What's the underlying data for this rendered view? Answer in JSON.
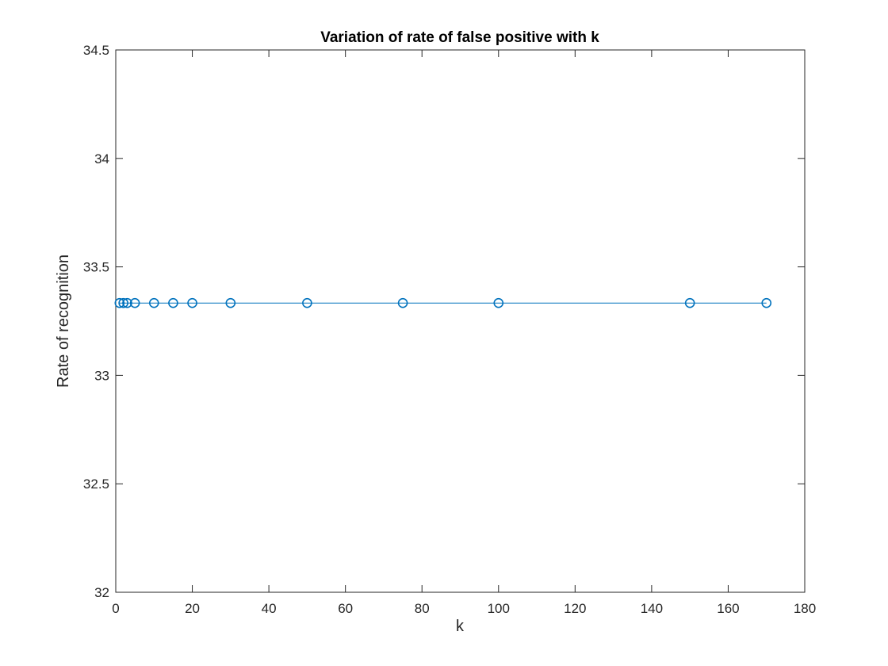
{
  "chart_data": {
    "type": "line",
    "title": "Variation of rate of false positive with k",
    "xlabel": "k",
    "ylabel": "Rate of recognition",
    "xlim": [
      0,
      180
    ],
    "ylim": [
      32,
      34.5
    ],
    "xticks": [
      0,
      20,
      40,
      60,
      80,
      100,
      120,
      140,
      160,
      180
    ],
    "yticks": [
      32,
      32.5,
      33,
      33.5,
      34,
      34.5
    ],
    "grid": false,
    "marker": "circle",
    "series": [
      {
        "x": [
          1,
          2,
          3,
          5,
          10,
          15,
          20,
          30,
          50,
          75,
          100,
          150,
          170
        ],
        "y": [
          33.3333,
          33.3333,
          33.3333,
          33.3333,
          33.3333,
          33.3333,
          33.3333,
          33.3333,
          33.3333,
          33.3333,
          33.3333,
          33.3333,
          33.3333
        ],
        "color": "#0072BD"
      }
    ]
  }
}
